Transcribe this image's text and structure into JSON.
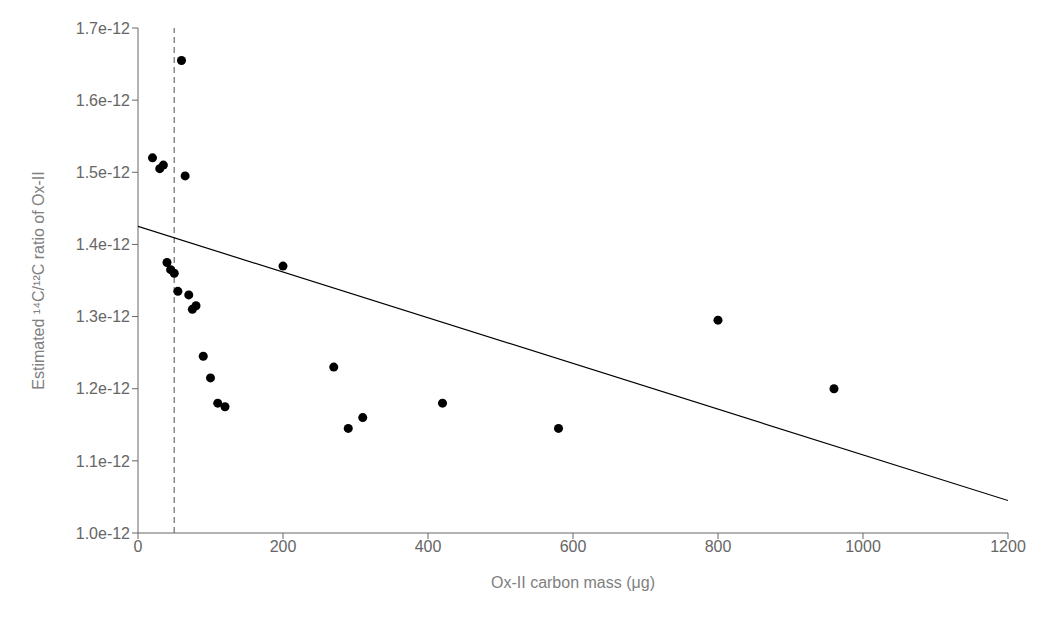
{
  "chart_data": {
    "type": "scatter",
    "xlabel": "Ox-II carbon mass (μg)",
    "ylabel": "Estimated ¹⁴C/¹²C ratio of Ox-II",
    "xlim": [
      0,
      1200
    ],
    "xticks": [
      0,
      200,
      400,
      600,
      800,
      1000,
      1200
    ],
    "ylim": [
      1e-12,
      1.7e-12
    ],
    "yticks": [
      {
        "value": 1e-12,
        "label": "1.0e-12"
      },
      {
        "value": 1.1e-12,
        "label": "1.1e-12"
      },
      {
        "value": 1.2e-12,
        "label": "1.2e-12"
      },
      {
        "value": 1.3e-12,
        "label": "1.3e-12"
      },
      {
        "value": 1.4e-12,
        "label": "1.4e-12"
      },
      {
        "value": 1.5e-12,
        "label": "1.5e-12"
      },
      {
        "value": 1.6e-12,
        "label": "1.6e-12"
      },
      {
        "value": 1.7e-12,
        "label": "1.7e-12"
      }
    ],
    "grid": false,
    "series": [
      {
        "type": "scatter",
        "color": "#000000",
        "x": [
          20,
          30,
          35,
          40,
          45,
          50,
          55,
          60,
          65,
          70,
          75,
          80,
          90,
          100,
          110,
          120,
          200,
          270,
          290,
          310,
          420,
          580,
          800,
          960
        ],
        "values": [
          1.52e-12,
          1.505e-12,
          1.51e-12,
          1.375e-12,
          1.365e-12,
          1.36e-12,
          1.335e-12,
          1.655e-12,
          1.495e-12,
          1.33e-12,
          1.31e-12,
          1.315e-12,
          1.245e-12,
          1.215e-12,
          1.18e-12,
          1.175e-12,
          1.37e-12,
          1.23e-12,
          1.145e-12,
          1.16e-12,
          1.18e-12,
          1.145e-12,
          1.295e-12,
          1.2e-12
        ]
      },
      {
        "type": "line",
        "color": "#000000",
        "x": [
          0,
          1200
        ],
        "values": [
          1.425e-12,
          1.045e-12
        ]
      },
      {
        "type": "vline",
        "color": "#888888",
        "line_style": "dashed",
        "x": 50
      }
    ]
  }
}
